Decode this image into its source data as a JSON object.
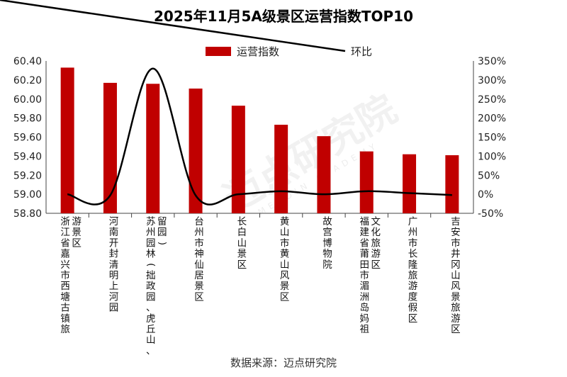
{
  "chart_data": {
    "type": "bar",
    "title": "2025年11月5A级景区运营指数TOP10",
    "categories": [
      "浙江省嘉兴市西塘古镇旅游景区",
      "河南开封清明上河园",
      "苏州园林(拙政园、虎丘山、留园)",
      "台州市神仙居景区",
      "长白山景区",
      "黄山市黄山风景区",
      "故宫博物院",
      "福建省莆田市湄洲岛妈祖文化旅游区",
      "广州市长隆旅游度假区",
      "吉安市井冈山风景旅游区"
    ],
    "category_lines": [
      [
        "浙江省嘉兴市西塘古镇旅",
        "游景区"
      ],
      [
        "河南开封清明上河园"
      ],
      [
        "苏州园林(拙政园、虎丘山、",
        "留园)"
      ],
      [
        "台州市神仙居景区"
      ],
      [
        "长白山景区"
      ],
      [
        "黄山市黄山风景区"
      ],
      [
        "故宫博物院"
      ],
      [
        "福建省莆田市湄洲岛妈祖",
        "文化旅游区"
      ],
      [
        "广州市长隆旅游度假区"
      ],
      [
        "吉安市井冈山风景旅游区"
      ]
    ],
    "series": [
      {
        "name": "运营指数",
        "type": "bar",
        "axis": "left",
        "color": "#c00000",
        "values": [
          60.33,
          60.17,
          60.16,
          60.11,
          59.93,
          59.73,
          59.61,
          59.45,
          59.42,
          59.41
        ]
      },
      {
        "name": "环比",
        "type": "line",
        "axis": "right",
        "color": "#000000",
        "unit": "%",
        "values": [
          0,
          -3,
          330,
          -3,
          0,
          8,
          0,
          8,
          3,
          -2
        ]
      }
    ],
    "y_left": {
      "min": 58.8,
      "max": 60.4,
      "ticks": [
        "60.40",
        "60.20",
        "60.00",
        "59.80",
        "59.60",
        "59.40",
        "59.20",
        "59.00",
        "58.80"
      ]
    },
    "y_right": {
      "min": -50,
      "max": 350,
      "ticks": [
        "350%",
        "300%",
        "250%",
        "200%",
        "150%",
        "100%",
        "50%",
        "0%",
        "-50%"
      ]
    },
    "legend": {
      "position": "top-center"
    },
    "grid": false
  },
  "source_text": "数据来源：迈点研究院",
  "watermark": {
    "main": "迈点研究院",
    "sub": "MEADIN ACADEMY"
  }
}
